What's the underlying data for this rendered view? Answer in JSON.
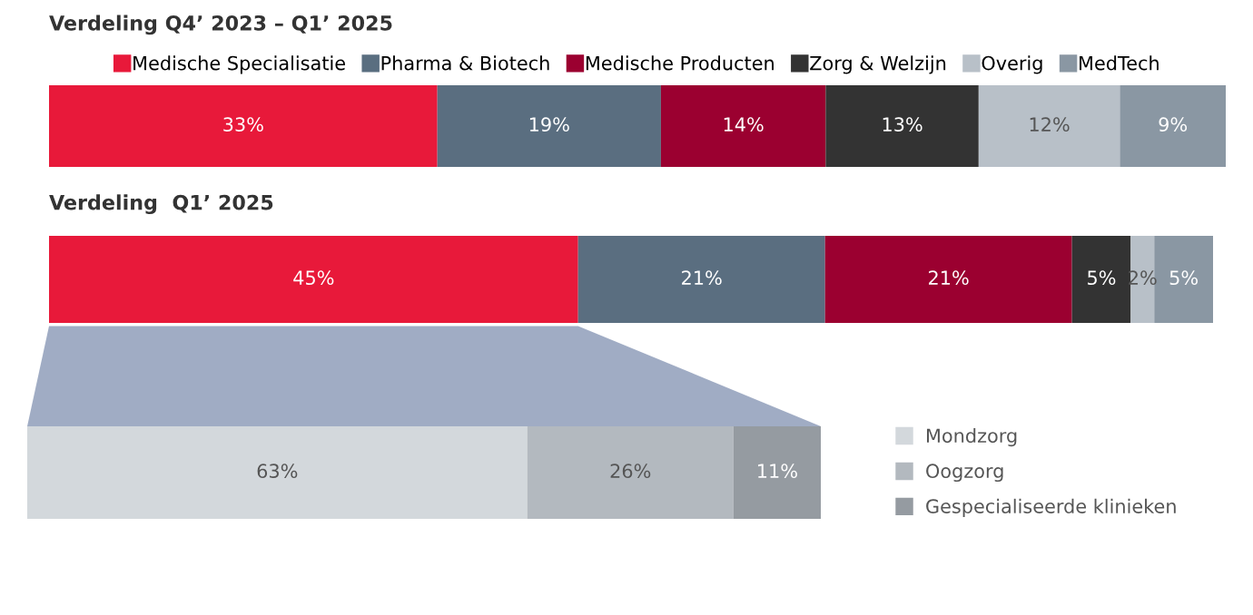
{
  "chart_data": [
    {
      "type": "bar",
      "orientation": "horizontal",
      "stacked": true,
      "title": "Verdeling Q4’ 2023 – Q1’ 2025",
      "categories": [
        null
      ],
      "legend": "top",
      "series": [
        {
          "name": "Medische Specialisatie",
          "color": "#e8193a",
          "values": [
            33
          ],
          "value_labels": [
            "33%"
          ]
        },
        {
          "name": "Pharma & Biotech",
          "color": "#5a6e80",
          "values": [
            19
          ],
          "value_labels": [
            "19%"
          ]
        },
        {
          "name": "Medische Producten",
          "color": "#9b0030",
          "values": [
            14
          ],
          "value_labels": [
            "14%"
          ]
        },
        {
          "name": "Zorg & Welzijn",
          "color": "#333333",
          "values": [
            13
          ],
          "value_labels": [
            "13%"
          ]
        },
        {
          "name": "Overig",
          "color": "#b8c0c8",
          "values": [
            12
          ],
          "value_labels": [
            "12%"
          ]
        },
        {
          "name": "MedTech",
          "color": "#8a97a3",
          "values": [
            9
          ],
          "value_labels": [
            "9%"
          ]
        }
      ]
    },
    {
      "type": "bar",
      "orientation": "horizontal",
      "stacked": true,
      "title": "Verdeling  Q1’ 2025",
      "categories": [
        null
      ],
      "series": [
        {
          "color": "#e8193a",
          "values": [
            45
          ],
          "value_labels": [
            "45%"
          ]
        },
        {
          "color": "#5a6e80",
          "values": [
            21
          ],
          "value_labels": [
            "21%"
          ]
        },
        {
          "color": "#9b0030",
          "values": [
            21
          ],
          "value_labels": [
            "21%"
          ]
        },
        {
          "color": "#333333",
          "values": [
            5
          ],
          "value_labels": [
            "5%"
          ]
        },
        {
          "color": "#b8c0c8",
          "values": [
            2
          ],
          "value_labels": [
            "2%"
          ]
        },
        {
          "color": "#8a97a3",
          "values": [
            5
          ],
          "value_labels": [
            "5%"
          ]
        }
      ]
    },
    {
      "type": "bar",
      "orientation": "horizontal",
      "stacked": true,
      "categories": [
        null
      ],
      "legend": "right",
      "series": [
        {
          "name": "Mondzorg",
          "color": "#d3d8dc",
          "values": [
            63
          ],
          "value_labels": [
            "63%"
          ]
        },
        {
          "name": "Oogzorg",
          "color": "#b3b9bf",
          "values": [
            26
          ],
          "value_labels": [
            "26%"
          ]
        },
        {
          "name": "Gespecialiseerde klinieken",
          "color": "#959ba1",
          "values": [
            11
          ],
          "value_labels": [
            "11%"
          ]
        }
      ]
    }
  ]
}
